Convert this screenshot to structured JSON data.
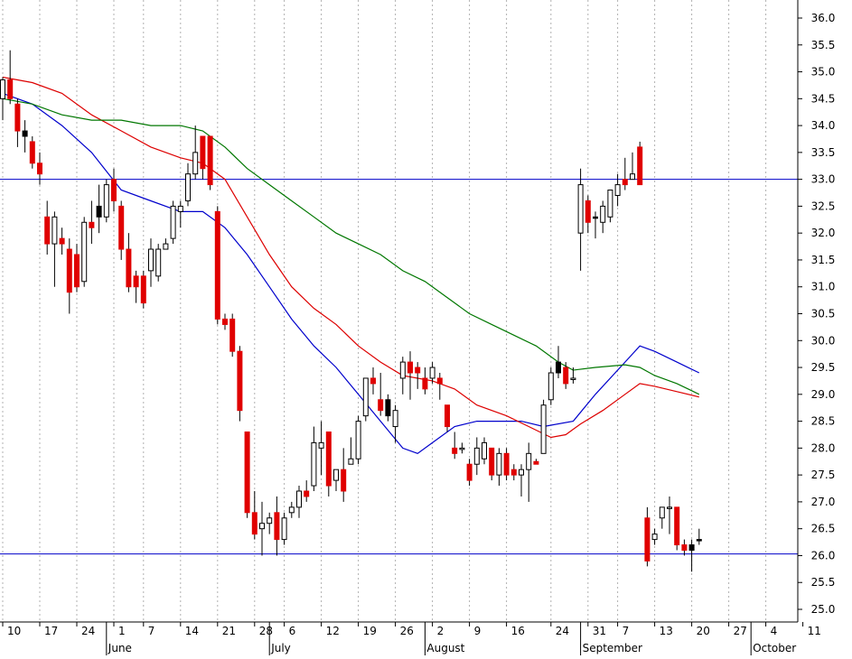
{
  "chart_data": {
    "type": "candlestick",
    "title": "",
    "xlabel": "",
    "ylabel": "",
    "ylim": [
      24.8,
      36.3
    ],
    "y_ticks": [
      25.0,
      25.5,
      26.0,
      26.5,
      27.0,
      27.5,
      28.0,
      28.5,
      29.0,
      29.5,
      30.0,
      30.5,
      31.0,
      31.5,
      32.0,
      32.5,
      33.0,
      33.5,
      34.0,
      34.5,
      35.0,
      35.5,
      36.0
    ],
    "y_tick_labels": [
      "25.0",
      "25.5",
      "26.0",
      "26.5",
      "27.0",
      "27.5",
      "28.0",
      "28.5",
      "29.0",
      "29.5",
      "30.0",
      "30.5",
      "31.0",
      "31.5",
      "32.0",
      "32.5",
      "33.0",
      "33.5",
      "34.0",
      "34.5",
      "35.0",
      "35.5",
      "36.0"
    ],
    "x_day_labels": [
      "10",
      "17",
      "24",
      "1",
      "7",
      "14",
      "21",
      "28",
      "6",
      "12",
      "19",
      "26",
      "2",
      "9",
      "16",
      "24",
      "31",
      "7",
      "13",
      "20",
      "27",
      "4",
      "11"
    ],
    "x_day_positions": [
      0,
      5,
      10,
      15,
      19,
      24,
      29,
      34,
      38,
      43,
      48,
      53,
      58,
      63,
      68,
      74,
      79,
      83,
      88,
      93,
      98,
      103,
      108
    ],
    "month_labels": [
      "June",
      "July",
      "August",
      "September",
      "October"
    ],
    "month_positions": [
      14,
      36,
      57,
      78,
      101
    ],
    "grid": true,
    "horizontal_lines": [
      {
        "value": 33.0,
        "color": "#0000c8"
      },
      {
        "value": 26.03,
        "color": "#0000c8"
      }
    ],
    "colors": {
      "up_body": "#ffffff",
      "down_body": "#e00000",
      "highlight_body": "#000000",
      "wick": "#000000",
      "ma_fast": "#0000cc",
      "ma_mid": "#dd0000",
      "ma_slow": "#007700",
      "grid": "#b0b0b0"
    },
    "candles": [
      {
        "x": 0,
        "o": 34.5,
        "h": 34.9,
        "l": 34.1,
        "c": 34.85
      },
      {
        "x": 1,
        "o": 34.85,
        "h": 35.4,
        "l": 34.4,
        "c": 34.5
      },
      {
        "x": 2,
        "o": 34.4,
        "h": 34.5,
        "l": 33.6,
        "c": 33.9
      },
      {
        "x": 3,
        "o": 33.9,
        "h": 34.1,
        "l": 33.5,
        "c": 33.8,
        "hl": true
      },
      {
        "x": 4,
        "o": 33.7,
        "h": 33.8,
        "l": 33.2,
        "c": 33.3
      },
      {
        "x": 5,
        "o": 33.3,
        "h": 33.5,
        "l": 32.9,
        "c": 33.1
      },
      {
        "x": 6,
        "o": 32.3,
        "h": 32.6,
        "l": 31.6,
        "c": 31.8
      },
      {
        "x": 7,
        "o": 31.8,
        "h": 32.4,
        "l": 31.0,
        "c": 32.3
      },
      {
        "x": 8,
        "o": 31.9,
        "h": 32.1,
        "l": 31.6,
        "c": 31.8
      },
      {
        "x": 9,
        "o": 31.7,
        "h": 31.9,
        "l": 30.5,
        "c": 30.9
      },
      {
        "x": 10,
        "o": 31.6,
        "h": 31.8,
        "l": 30.9,
        "c": 31.0
      },
      {
        "x": 11,
        "o": 31.1,
        "h": 32.3,
        "l": 31.0,
        "c": 32.2
      },
      {
        "x": 12,
        "o": 32.2,
        "h": 32.6,
        "l": 31.8,
        "c": 32.1
      },
      {
        "x": 13,
        "o": 32.3,
        "h": 32.9,
        "l": 32.0,
        "c": 32.5,
        "hl": true
      },
      {
        "x": 14,
        "o": 32.3,
        "h": 33.0,
        "l": 32.2,
        "c": 32.9
      },
      {
        "x": 15,
        "o": 33.0,
        "h": 33.2,
        "l": 32.4,
        "c": 32.6
      },
      {
        "x": 16,
        "o": 32.5,
        "h": 32.6,
        "l": 31.5,
        "c": 31.7
      },
      {
        "x": 17,
        "o": 31.7,
        "h": 32.0,
        "l": 30.9,
        "c": 31.0
      },
      {
        "x": 18,
        "o": 31.2,
        "h": 31.3,
        "l": 30.7,
        "c": 31.0
      },
      {
        "x": 19,
        "o": 31.2,
        "h": 31.3,
        "l": 30.6,
        "c": 30.7
      },
      {
        "x": 20,
        "o": 31.3,
        "h": 31.9,
        "l": 31.0,
        "c": 31.7
      },
      {
        "x": 21,
        "o": 31.2,
        "h": 31.8,
        "l": 31.1,
        "c": 31.7
      },
      {
        "x": 22,
        "o": 31.7,
        "h": 31.9,
        "l": 31.7,
        "c": 31.8
      },
      {
        "x": 23,
        "o": 31.9,
        "h": 32.6,
        "l": 31.8,
        "c": 32.5
      },
      {
        "x": 24,
        "o": 32.4,
        "h": 32.6,
        "l": 32.1,
        "c": 32.5
      },
      {
        "x": 25,
        "o": 32.6,
        "h": 33.3,
        "l": 32.5,
        "c": 33.1
      },
      {
        "x": 26,
        "o": 33.1,
        "h": 34.0,
        "l": 33.0,
        "c": 33.5
      },
      {
        "x": 27,
        "o": 33.8,
        "h": 33.8,
        "l": 33.0,
        "c": 33.2
      },
      {
        "x": 28,
        "o": 33.8,
        "h": 33.8,
        "l": 32.8,
        "c": 32.9
      },
      {
        "x": 29,
        "o": 32.4,
        "h": 32.5,
        "l": 30.3,
        "c": 30.4
      },
      {
        "x": 30,
        "o": 30.4,
        "h": 30.5,
        "l": 30.2,
        "c": 30.3
      },
      {
        "x": 31,
        "o": 30.4,
        "h": 30.5,
        "l": 29.7,
        "c": 29.8
      },
      {
        "x": 32,
        "o": 29.8,
        "h": 29.9,
        "l": 28.5,
        "c": 28.7
      },
      {
        "x": 33,
        "o": 28.3,
        "h": 28.3,
        "l": 26.7,
        "c": 26.8
      },
      {
        "x": 34,
        "o": 26.8,
        "h": 27.2,
        "l": 26.3,
        "c": 26.4
      },
      {
        "x": 35,
        "o": 26.5,
        "h": 27.0,
        "l": 26.0,
        "c": 26.6
      },
      {
        "x": 36,
        "o": 26.6,
        "h": 26.8,
        "l": 26.4,
        "c": 26.7
      },
      {
        "x": 37,
        "o": 26.8,
        "h": 27.1,
        "l": 26.0,
        "c": 26.3
      },
      {
        "x": 38,
        "o": 26.3,
        "h": 26.8,
        "l": 26.2,
        "c": 26.7
      },
      {
        "x": 39,
        "o": 26.8,
        "h": 27.0,
        "l": 26.7,
        "c": 26.9
      },
      {
        "x": 40,
        "o": 26.9,
        "h": 27.3,
        "l": 26.7,
        "c": 27.2
      },
      {
        "x": 41,
        "o": 27.2,
        "h": 27.4,
        "l": 27.0,
        "c": 27.1
      },
      {
        "x": 42,
        "o": 27.3,
        "h": 28.4,
        "l": 27.2,
        "c": 28.1
      },
      {
        "x": 43,
        "o": 28.0,
        "h": 28.5,
        "l": 27.5,
        "c": 28.1
      },
      {
        "x": 44,
        "o": 28.3,
        "h": 28.3,
        "l": 27.1,
        "c": 27.3
      },
      {
        "x": 45,
        "o": 27.4,
        "h": 27.6,
        "l": 27.2,
        "c": 27.6
      },
      {
        "x": 46,
        "o": 27.6,
        "h": 28.0,
        "l": 27.0,
        "c": 27.2
      },
      {
        "x": 47,
        "o": 27.7,
        "h": 28.2,
        "l": 27.7,
        "c": 27.8
      },
      {
        "x": 48,
        "o": 27.8,
        "h": 28.6,
        "l": 27.7,
        "c": 28.5
      },
      {
        "x": 49,
        "o": 28.6,
        "h": 29.3,
        "l": 28.5,
        "c": 29.3
      },
      {
        "x": 50,
        "o": 29.3,
        "h": 29.5,
        "l": 29.0,
        "c": 29.2
      },
      {
        "x": 51,
        "o": 28.9,
        "h": 29.4,
        "l": 28.6,
        "c": 28.7
      },
      {
        "x": 52,
        "o": 28.9,
        "h": 29.0,
        "l": 28.5,
        "c": 28.6,
        "hl": true
      },
      {
        "x": 53,
        "o": 28.4,
        "h": 28.8,
        "l": 28.1,
        "c": 28.7
      },
      {
        "x": 54,
        "o": 29.3,
        "h": 29.7,
        "l": 29.0,
        "c": 29.6
      },
      {
        "x": 55,
        "o": 29.6,
        "h": 29.8,
        "l": 28.9,
        "c": 29.4
      },
      {
        "x": 56,
        "o": 29.5,
        "h": 29.6,
        "l": 29.1,
        "c": 29.4
      },
      {
        "x": 57,
        "o": 29.3,
        "h": 29.5,
        "l": 29.0,
        "c": 29.1
      },
      {
        "x": 58,
        "o": 29.3,
        "h": 29.6,
        "l": 29.2,
        "c": 29.5
      },
      {
        "x": 59,
        "o": 29.3,
        "h": 29.4,
        "l": 28.9,
        "c": 29.2
      },
      {
        "x": 60,
        "o": 28.8,
        "h": 28.8,
        "l": 28.3,
        "c": 28.4
      },
      {
        "x": 61,
        "o": 28.0,
        "h": 28.3,
        "l": 27.8,
        "c": 27.9
      },
      {
        "x": 62,
        "o": 28.0,
        "h": 28.1,
        "l": 27.9,
        "c": 28.0
      },
      {
        "x": 63,
        "o": 27.7,
        "h": 27.8,
        "l": 27.3,
        "c": 27.4
      },
      {
        "x": 64,
        "o": 27.7,
        "h": 28.2,
        "l": 27.5,
        "c": 28.0
      },
      {
        "x": 65,
        "o": 27.8,
        "h": 28.2,
        "l": 27.7,
        "c": 28.1
      },
      {
        "x": 66,
        "o": 28.0,
        "h": 28.0,
        "l": 27.4,
        "c": 27.5
      },
      {
        "x": 67,
        "o": 27.5,
        "h": 28.0,
        "l": 27.3,
        "c": 27.9
      },
      {
        "x": 68,
        "o": 27.9,
        "h": 28.0,
        "l": 27.4,
        "c": 27.5
      },
      {
        "x": 69,
        "o": 27.6,
        "h": 27.7,
        "l": 27.4,
        "c": 27.5
      },
      {
        "x": 70,
        "o": 27.5,
        "h": 27.7,
        "l": 27.1,
        "c": 27.6
      },
      {
        "x": 71,
        "o": 27.6,
        "h": 28.1,
        "l": 27.0,
        "c": 27.9
      },
      {
        "x": 72,
        "o": 27.75,
        "h": 27.8,
        "l": 27.7,
        "c": 27.7
      },
      {
        "x": 73,
        "o": 27.9,
        "h": 28.9,
        "l": 27.9,
        "c": 28.8
      },
      {
        "x": 74,
        "o": 28.9,
        "h": 29.5,
        "l": 28.8,
        "c": 29.4
      },
      {
        "x": 75,
        "o": 29.6,
        "h": 29.9,
        "l": 29.3,
        "c": 29.4,
        "hl": true
      },
      {
        "x": 76,
        "o": 29.5,
        "h": 29.6,
        "l": 29.1,
        "c": 29.2
      },
      {
        "x": 77,
        "o": 29.3,
        "h": 29.5,
        "l": 29.2,
        "c": 29.3
      },
      {
        "x": 78,
        "o": 32.0,
        "h": 33.2,
        "l": 31.3,
        "c": 32.9
      },
      {
        "x": 79,
        "o": 32.6,
        "h": 32.7,
        "l": 32.0,
        "c": 32.2
      },
      {
        "x": 80,
        "o": 32.3,
        "h": 32.4,
        "l": 31.9,
        "c": 32.3,
        "hl": true
      },
      {
        "x": 81,
        "o": 32.2,
        "h": 32.6,
        "l": 32.0,
        "c": 32.5
      },
      {
        "x": 82,
        "o": 32.3,
        "h": 32.8,
        "l": 32.2,
        "c": 32.8
      },
      {
        "x": 83,
        "o": 32.7,
        "h": 33.1,
        "l": 32.5,
        "c": 32.9
      },
      {
        "x": 84,
        "o": 33.0,
        "h": 33.4,
        "l": 32.8,
        "c": 32.9
      },
      {
        "x": 85,
        "o": 33.0,
        "h": 33.5,
        "l": 33.0,
        "c": 33.1
      },
      {
        "x": 86,
        "o": 33.6,
        "h": 33.7,
        "l": 32.9,
        "c": 32.9
      },
      {
        "x": 87,
        "o": 26.7,
        "h": 26.9,
        "l": 25.8,
        "c": 25.9
      },
      {
        "x": 88,
        "o": 26.3,
        "h": 26.5,
        "l": 26.2,
        "c": 26.4
      },
      {
        "x": 89,
        "o": 26.7,
        "h": 26.9,
        "l": 26.5,
        "c": 26.9
      },
      {
        "x": 90,
        "o": 26.9,
        "h": 27.1,
        "l": 26.4,
        "c": 26.9
      },
      {
        "x": 91,
        "o": 26.9,
        "h": 26.9,
        "l": 26.1,
        "c": 26.2
      },
      {
        "x": 92,
        "o": 26.2,
        "h": 26.3,
        "l": 26.0,
        "c": 26.1
      },
      {
        "x": 93,
        "o": 26.1,
        "h": 26.3,
        "l": 25.7,
        "c": 26.2,
        "hl": true
      },
      {
        "x": 94,
        "o": 26.3,
        "h": 26.5,
        "l": 26.2,
        "c": 26.3,
        "hl": true
      }
    ],
    "series": [
      {
        "key": "ma_fast",
        "color": "#0000cc",
        "points": [
          [
            0,
            34.6
          ],
          [
            4,
            34.4
          ],
          [
            8,
            34.0
          ],
          [
            12,
            33.5
          ],
          [
            16,
            32.8
          ],
          [
            20,
            32.6
          ],
          [
            24,
            32.4
          ],
          [
            27,
            32.4
          ],
          [
            30,
            32.1
          ],
          [
            33,
            31.6
          ],
          [
            36,
            31.0
          ],
          [
            39,
            30.4
          ],
          [
            42,
            29.9
          ],
          [
            45,
            29.5
          ],
          [
            48,
            29.0
          ],
          [
            51,
            28.5
          ],
          [
            54,
            28.0
          ],
          [
            56,
            27.9
          ],
          [
            58,
            28.1
          ],
          [
            61,
            28.4
          ],
          [
            64,
            28.5
          ],
          [
            68,
            28.5
          ],
          [
            70,
            28.5
          ],
          [
            73,
            28.4
          ],
          [
            77,
            28.5
          ],
          [
            80,
            29.0
          ],
          [
            84,
            29.6
          ],
          [
            86,
            29.9
          ],
          [
            88,
            29.8
          ],
          [
            91,
            29.6
          ],
          [
            94,
            29.4
          ]
        ]
      },
      {
        "key": "ma_mid",
        "color": "#dd0000",
        "points": [
          [
            0,
            34.9
          ],
          [
            4,
            34.8
          ],
          [
            8,
            34.6
          ],
          [
            12,
            34.2
          ],
          [
            16,
            33.9
          ],
          [
            20,
            33.6
          ],
          [
            24,
            33.4
          ],
          [
            27,
            33.3
          ],
          [
            30,
            33.0
          ],
          [
            33,
            32.3
          ],
          [
            36,
            31.6
          ],
          [
            39,
            31.0
          ],
          [
            42,
            30.6
          ],
          [
            45,
            30.3
          ],
          [
            48,
            29.9
          ],
          [
            51,
            29.6
          ],
          [
            54,
            29.35
          ],
          [
            58,
            29.25
          ],
          [
            61,
            29.1
          ],
          [
            64,
            28.8
          ],
          [
            68,
            28.6
          ],
          [
            71,
            28.4
          ],
          [
            74,
            28.2
          ],
          [
            76,
            28.25
          ],
          [
            78,
            28.45
          ],
          [
            81,
            28.7
          ],
          [
            84,
            29.0
          ],
          [
            86,
            29.2
          ],
          [
            88,
            29.15
          ],
          [
            91,
            29.05
          ],
          [
            94,
            28.95
          ]
        ]
      },
      {
        "key": "ma_slow",
        "color": "#007700",
        "points": [
          [
            0,
            34.5
          ],
          [
            4,
            34.4
          ],
          [
            8,
            34.2
          ],
          [
            12,
            34.1
          ],
          [
            16,
            34.1
          ],
          [
            20,
            34.0
          ],
          [
            24,
            34.0
          ],
          [
            27,
            33.9
          ],
          [
            30,
            33.6
          ],
          [
            33,
            33.2
          ],
          [
            36,
            32.9
          ],
          [
            39,
            32.6
          ],
          [
            42,
            32.3
          ],
          [
            45,
            32.0
          ],
          [
            48,
            31.8
          ],
          [
            51,
            31.6
          ],
          [
            54,
            31.3
          ],
          [
            57,
            31.1
          ],
          [
            60,
            30.8
          ],
          [
            63,
            30.5
          ],
          [
            66,
            30.3
          ],
          [
            69,
            30.1
          ],
          [
            72,
            29.9
          ],
          [
            75,
            29.6
          ],
          [
            77,
            29.45
          ],
          [
            80,
            29.5
          ],
          [
            84,
            29.55
          ],
          [
            86,
            29.5
          ],
          [
            88,
            29.35
          ],
          [
            91,
            29.2
          ],
          [
            94,
            29.0
          ]
        ]
      }
    ]
  }
}
